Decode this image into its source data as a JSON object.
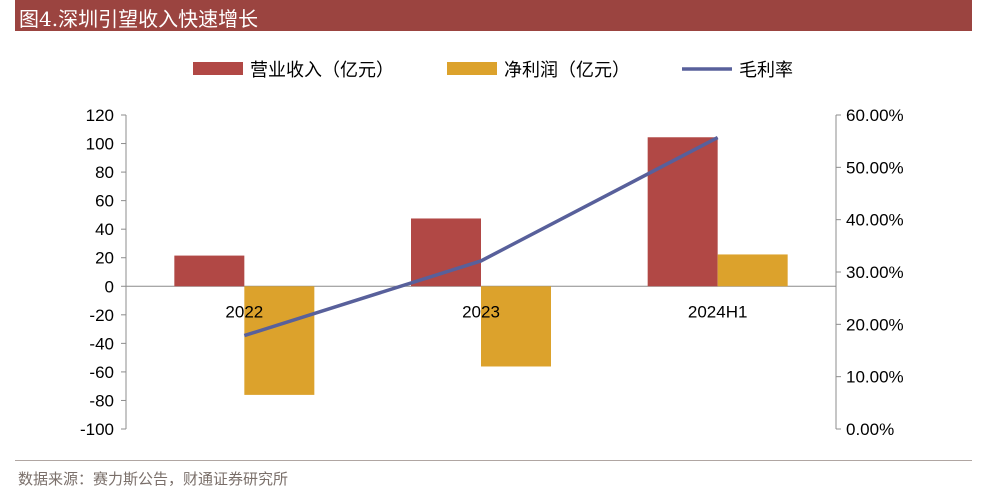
{
  "header": {
    "title": "图4.深圳引望收入快速增长"
  },
  "footer": {
    "source": "数据来源：赛力斯公告，财通证券研究所"
  },
  "colors": {
    "revenue": "#b14845",
    "profit": "#dca22c",
    "margin": "#58609b",
    "title_bg": "#9b4440"
  },
  "chart_data": {
    "type": "bar",
    "categories": [
      "2022",
      "2023",
      "2024H1"
    ],
    "series": [
      {
        "name": "营业收入（亿元）",
        "type": "bar",
        "axis": "left",
        "values": [
          21.5,
          47.5,
          104.4
        ]
      },
      {
        "name": "净利润（亿元）",
        "type": "bar",
        "axis": "left",
        "values": [
          -76.1,
          -56.2,
          22.3
        ]
      },
      {
        "name": "毛利率",
        "type": "line",
        "axis": "right",
        "values": [
          0.1785,
          0.3212,
          0.5569
        ]
      }
    ],
    "ylim": [
      -100,
      120
    ],
    "yticks": [
      "120",
      "100",
      "80",
      "60",
      "40",
      "20",
      "0",
      "-20",
      "-40",
      "-60",
      "-80",
      "-100"
    ],
    "y2lim": [
      0,
      0.6
    ],
    "y2ticks": [
      "60.00%",
      "50.00%",
      "40.00%",
      "30.00%",
      "20.00%",
      "10.00%",
      "0.00%"
    ],
    "legend_position": "top",
    "grid": false
  }
}
